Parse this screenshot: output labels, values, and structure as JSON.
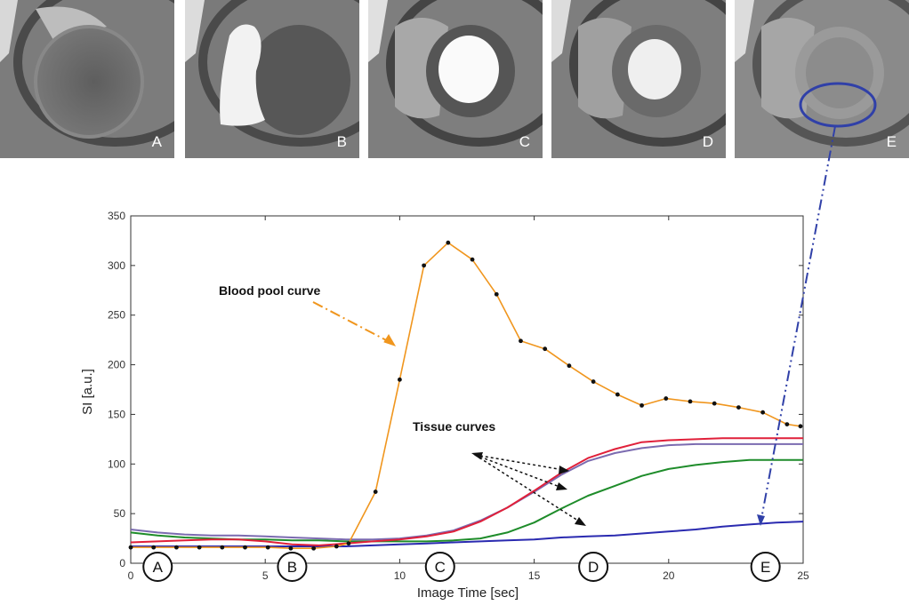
{
  "frames": [
    {
      "label": "A"
    },
    {
      "label": "B"
    },
    {
      "label": "C"
    },
    {
      "label": "D"
    },
    {
      "label": "E"
    }
  ],
  "annotations": {
    "blood_pool": "Blood pool curve",
    "tissue": "Tissue curves"
  },
  "timepoint_markers": [
    {
      "label": "A",
      "x": 1.0
    },
    {
      "label": "B",
      "x": 6.0
    },
    {
      "label": "C",
      "x": 11.5
    },
    {
      "label": "D",
      "x": 17.2
    },
    {
      "label": "E",
      "x": 23.6
    }
  ],
  "colors": {
    "blood": "#f0961e",
    "red": "#e0203a",
    "purple": "#7b6bb0",
    "green": "#1e8c2a",
    "blue": "#2a2ab0",
    "annotation_blue": "#3040a8"
  },
  "chart_data": {
    "type": "line",
    "xlabel": "Image Time [sec]",
    "ylabel": "SI [a.u.]",
    "xlim": [
      0,
      25
    ],
    "ylim": [
      0,
      350
    ],
    "xticks": [
      0,
      5,
      10,
      15,
      20,
      25
    ],
    "yticks": [
      0,
      50,
      100,
      150,
      200,
      250,
      300,
      350
    ],
    "grid": false,
    "series": [
      {
        "key": "blood",
        "markers": true,
        "x": [
          0,
          0.85,
          1.7,
          2.55,
          3.4,
          4.25,
          5.1,
          5.95,
          6.8,
          7.65,
          8.1,
          9.1,
          10.0,
          10.9,
          11.8,
          12.7,
          13.6,
          14.5,
          15.4,
          16.3,
          17.2,
          18.1,
          19.0,
          19.9,
          20.8,
          21.7,
          22.6,
          23.5,
          24.4,
          24.9
        ],
        "y": [
          16,
          16,
          16,
          16,
          16,
          16,
          16,
          15,
          15,
          17,
          20,
          72,
          185,
          300,
          323,
          306,
          271,
          224,
          216,
          199,
          183,
          170,
          159,
          166,
          163,
          161,
          157,
          152,
          140,
          138
        ]
      },
      {
        "key": "red",
        "markers": false,
        "x": [
          0,
          1,
          2,
          3,
          4,
          5,
          6,
          7,
          8,
          9,
          10,
          11,
          12,
          13,
          14,
          15,
          16,
          17,
          18,
          19,
          20,
          21,
          22,
          23,
          24,
          25
        ],
        "y": [
          21,
          22,
          23,
          24,
          24,
          22,
          19,
          18,
          20,
          22,
          24,
          27,
          32,
          42,
          56,
          73,
          91,
          106,
          115,
          122,
          124,
          125,
          126,
          126,
          126,
          126
        ]
      },
      {
        "key": "purple",
        "markers": false,
        "x": [
          0,
          1,
          2,
          3,
          4,
          5,
          6,
          7,
          8,
          9,
          10,
          11,
          12,
          13,
          14,
          15,
          16,
          17,
          18,
          19,
          20,
          21,
          22,
          23,
          24,
          25
        ],
        "y": [
          34,
          31,
          29,
          28,
          28,
          27,
          26,
          25,
          24,
          24,
          25,
          28,
          33,
          43,
          56,
          72,
          89,
          103,
          111,
          116,
          119,
          120,
          120,
          120,
          120,
          120
        ]
      },
      {
        "key": "green",
        "markers": false,
        "x": [
          0,
          1,
          2,
          3,
          4,
          5,
          6,
          7,
          8,
          9,
          10,
          11,
          12,
          13,
          14,
          15,
          16,
          17,
          18,
          19,
          20,
          21,
          22,
          23,
          24,
          25
        ],
        "y": [
          31,
          28,
          26,
          25,
          24,
          24,
          23,
          23,
          22,
          22,
          22,
          22,
          23,
          25,
          31,
          41,
          55,
          68,
          78,
          88,
          95,
          99,
          102,
          104,
          104,
          104
        ]
      },
      {
        "key": "blue",
        "markers": false,
        "x": [
          0,
          1,
          2,
          3,
          4,
          5,
          6,
          7,
          8,
          9,
          10,
          11,
          12,
          13,
          14,
          15,
          16,
          17,
          18,
          19,
          20,
          21,
          22,
          23,
          24,
          25
        ],
        "y": [
          17,
          17,
          17,
          17,
          17,
          17,
          17,
          17,
          17,
          18,
          19,
          20,
          21,
          22,
          23,
          24,
          26,
          27,
          28,
          30,
          32,
          34,
          37,
          39,
          41,
          42
        ]
      }
    ]
  }
}
